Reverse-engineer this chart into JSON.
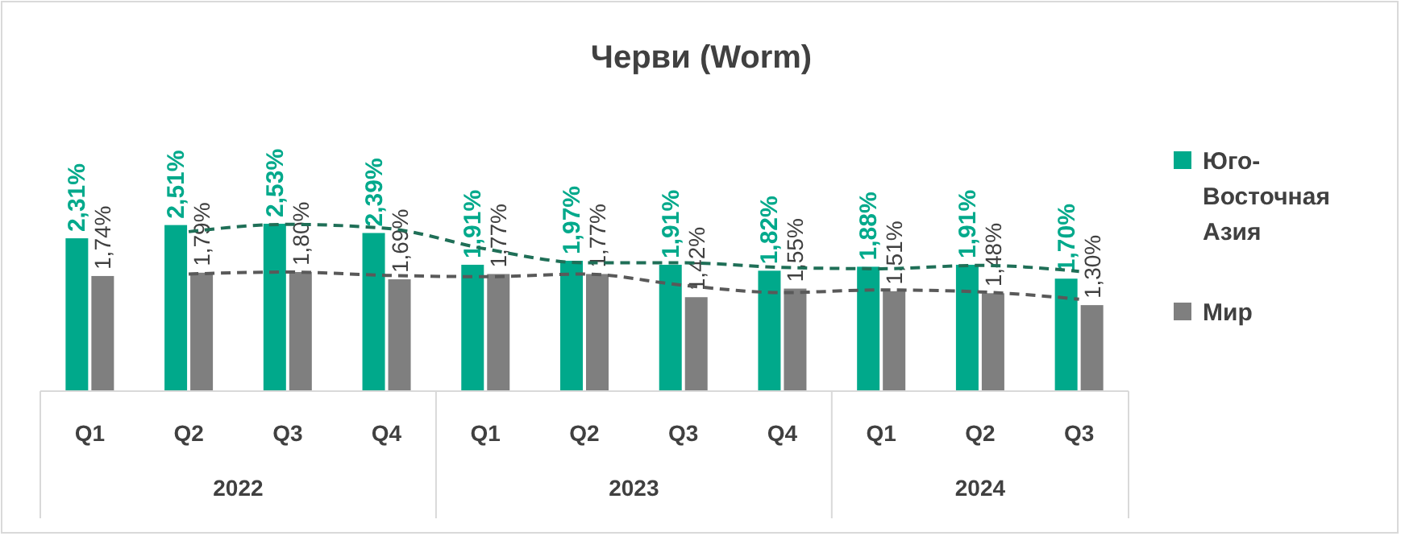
{
  "chart_data": {
    "type": "bar",
    "title": "Черви (Worm)",
    "categories": [
      "Q1",
      "Q2",
      "Q3",
      "Q4",
      "Q1",
      "Q2",
      "Q3",
      "Q4",
      "Q1",
      "Q2",
      "Q3"
    ],
    "annotations": [
      "2022",
      "2023",
      "2024"
    ],
    "legend": "right",
    "series": [
      {
        "name": "Юго-Восточная Азия",
        "color": "#00a98b",
        "values": [
          2.31,
          2.51,
          2.53,
          2.39,
          1.91,
          1.97,
          1.91,
          1.82,
          1.88,
          1.91,
          1.7
        ],
        "value_labels": [
          "2,31%",
          "2,51%",
          "2,53%",
          "2,39%",
          "1,91%",
          "1,97%",
          "1,91%",
          "1,82%",
          "1,88%",
          "1,91%",
          "1,70%"
        ]
      },
      {
        "name": "Мир",
        "color": "#7f7f7f",
        "values": [
          1.74,
          1.79,
          1.8,
          1.69,
          1.77,
          1.77,
          1.42,
          1.55,
          1.51,
          1.48,
          1.3
        ],
        "value_labels": [
          "1,74%",
          "1,79%",
          "1,80%",
          "1,69%",
          "1,77%",
          "1,77%",
          "1,42%",
          "1,55%",
          "1,51%",
          "1,48%",
          "1,30%"
        ]
      },
      {
        "type": "line",
        "line_style": "dashed",
        "color": "#1f6f57",
        "values": [
          null,
          2.41,
          2.52,
          2.46,
          2.15,
          1.94,
          1.94,
          1.87,
          1.85,
          1.9,
          1.81
        ]
      },
      {
        "type": "line",
        "line_style": "dashed",
        "color": "#595959",
        "values": [
          null,
          1.77,
          1.8,
          1.75,
          1.73,
          1.77,
          1.6,
          1.49,
          1.53,
          1.5,
          1.39
        ]
      }
    ]
  }
}
